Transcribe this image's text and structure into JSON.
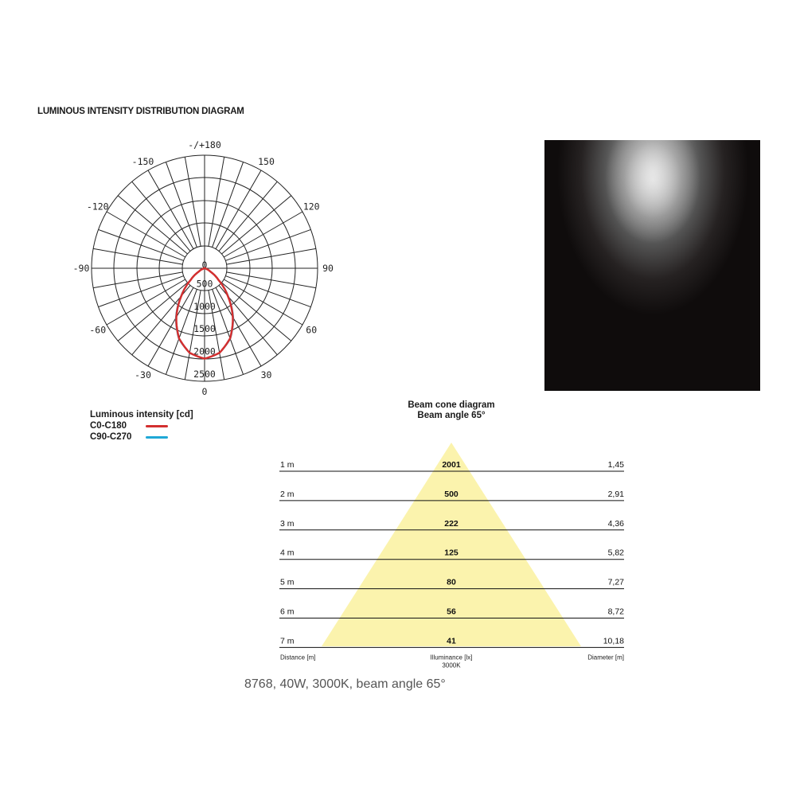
{
  "title": "LUMINOUS INTENSITY DISTRIBUTION DIAGRAM",
  "chart_data": [
    {
      "type": "polar",
      "angle_labels": [
        "-/+180",
        "150",
        "120",
        "90",
        "60",
        "30",
        "0",
        "-30",
        "-60",
        "-90",
        "-120",
        "-150"
      ],
      "angle_values": [
        180,
        150,
        120,
        90,
        60,
        30,
        0,
        -30,
        -60,
        -90,
        -120,
        -150
      ],
      "radial_labels": [
        "0",
        "500",
        "1000",
        "1500",
        "2000",
        "2500"
      ],
      "radial_range": [
        0,
        2500
      ],
      "unit_label": "Luminous intensity [cd]",
      "series": [
        {
          "name": "C0-C180",
          "color": "#d32f2f",
          "angles": [
            0,
            10,
            20,
            30,
            40,
            50,
            60,
            70,
            80,
            90
          ],
          "values": [
            2000,
            1900,
            1650,
            1250,
            800,
            400,
            150,
            40,
            5,
            0
          ]
        },
        {
          "name": "C90-C270",
          "color": "#1fa8d6",
          "angles": [
            0,
            10,
            20,
            30,
            40,
            50,
            60,
            70,
            80,
            90
          ],
          "values": [
            2000,
            1900,
            1660,
            1270,
            820,
            410,
            150,
            40,
            5,
            0
          ]
        }
      ]
    },
    {
      "type": "table",
      "title": "Beam cone diagram",
      "subtitle": "Beam angle 65°",
      "cone_color": "#fbf3ad",
      "rows": [
        {
          "distance": "1 m",
          "illuminance": "2001",
          "diameter": "1,45"
        },
        {
          "distance": "2 m",
          "illuminance": "500",
          "diameter": "2,91"
        },
        {
          "distance": "3 m",
          "illuminance": "222",
          "diameter": "4,36"
        },
        {
          "distance": "4 m",
          "illuminance": "125",
          "diameter": "5,82"
        },
        {
          "distance": "5 m",
          "illuminance": "80",
          "diameter": "7,27"
        },
        {
          "distance": "6 m",
          "illuminance": "56",
          "diameter": "8,72"
        },
        {
          "distance": "7 m",
          "illuminance": "41",
          "diameter": "10,18"
        }
      ],
      "footer": {
        "distance": "Distance [m]",
        "illuminance": "Illuminance [lx]",
        "cct": "3000K",
        "diameter": "Diameter [m]"
      }
    }
  ],
  "caption": "8768, 40W, 3000K, beam angle 65°"
}
